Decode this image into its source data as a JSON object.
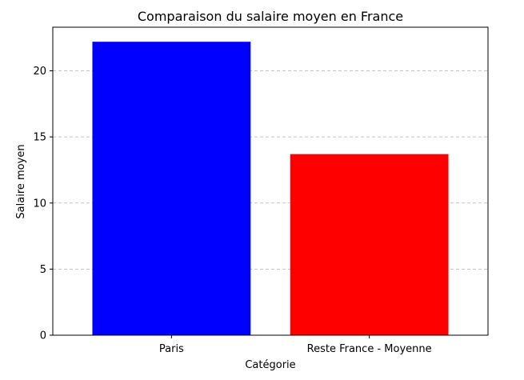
{
  "chart_data": {
    "type": "bar",
    "title": "Comparaison du salaire moyen en France",
    "xlabel": "Catégorie",
    "ylabel": "Salaire moyen",
    "categories": [
      "Paris",
      "Reste France - Moyenne"
    ],
    "values": [
      22.2,
      13.7
    ],
    "colors": [
      "#0000ff",
      "#ff0000"
    ],
    "ylim": [
      0,
      23.3
    ],
    "yticks": [
      0,
      5,
      10,
      15,
      20
    ],
    "grid": "y-dashed",
    "legend": "none"
  }
}
